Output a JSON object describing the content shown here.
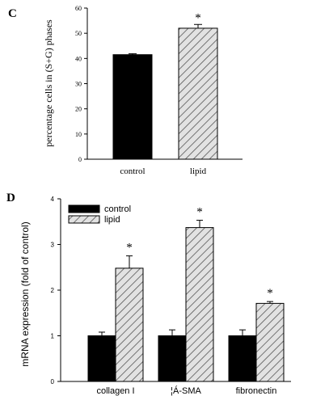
{
  "chart_data": [
    {
      "panel_label": "C",
      "type": "bar",
      "categories": [
        "control",
        "lipid"
      ],
      "values": [
        41.5,
        52.0
      ],
      "errors": [
        0.4,
        1.5
      ],
      "colors": [
        "#000000",
        "hatched-gray"
      ],
      "significance": [
        "",
        "*"
      ],
      "ylabel": "percentage cells in (S+G) phases",
      "xlabel": "",
      "ylim": [
        0,
        60
      ],
      "yticks": [
        "0",
        "10",
        "20",
        "30",
        "40",
        "50",
        "60"
      ],
      "grid": false,
      "legend": null
    },
    {
      "panel_label": "D",
      "type": "bar",
      "categories": [
        "collagen I",
        "¦Á-SMA",
        "fibronectin"
      ],
      "series": [
        {
          "name": "control",
          "values": [
            1.0,
            1.0,
            1.0
          ],
          "errors": [
            0.08,
            0.13,
            0.13
          ],
          "color": "#000000"
        },
        {
          "name": "lipid",
          "values": [
            2.48,
            3.37,
            1.71
          ],
          "errors": [
            0.27,
            0.16,
            0.04
          ],
          "color": "hatched-gray"
        }
      ],
      "significance": [
        "*",
        "*",
        "*"
      ],
      "ylabel": "mRNA expression (fold of control)",
      "xlabel": "",
      "ylim": [
        0,
        4
      ],
      "yticks": [
        "0",
        "1",
        "2",
        "3",
        "4"
      ],
      "grid": false,
      "legend": "top-left"
    }
  ]
}
